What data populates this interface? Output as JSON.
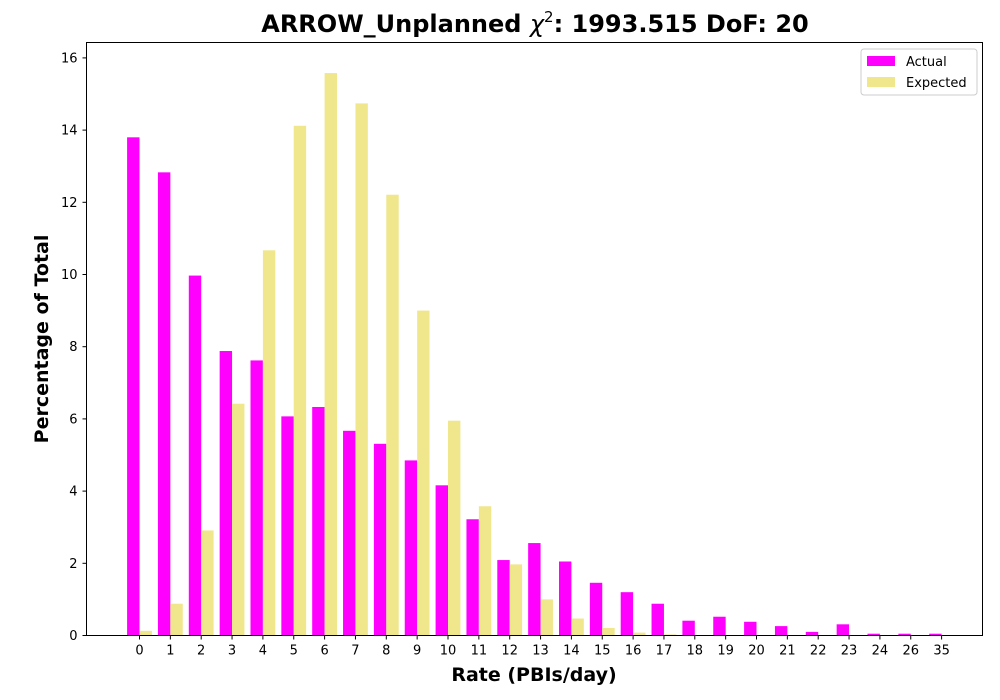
{
  "chart_data": {
    "type": "bar",
    "title_prefix": "ARROW_Unplanned ",
    "title_symbol": "χ",
    "title_superscript": "2",
    "title_suffix": ": 1993.515 DoF: 20",
    "xlabel": "Rate (PBIs/day)",
    "ylabel": "Percentage of Total",
    "ylim": [
      0,
      16.4
    ],
    "yticks": [
      0,
      2,
      4,
      6,
      8,
      10,
      12,
      14,
      16
    ],
    "grid": false,
    "legend_position": "top-right",
    "categories": [
      "0",
      "1",
      "2",
      "3",
      "4",
      "5",
      "6",
      "7",
      "8",
      "9",
      "10",
      "11",
      "12",
      "13",
      "14",
      "15",
      "16",
      "17",
      "18",
      "19",
      "20",
      "21",
      "22",
      "23",
      "24",
      "26",
      "35"
    ],
    "series": [
      {
        "name": "Actual",
        "color": "#ff00ff",
        "values": [
          13.8,
          12.83,
          9.97,
          7.88,
          7.62,
          6.07,
          6.33,
          5.67,
          5.31,
          4.85,
          4.16,
          3.22,
          2.09,
          2.56,
          2.05,
          1.46,
          1.2,
          0.88,
          0.41,
          0.52,
          0.38,
          0.26,
          0.1,
          0.31,
          0.05,
          0.05,
          0.05
        ]
      },
      {
        "name": "Expected",
        "color": "#f0e68c",
        "values": [
          0.13,
          0.88,
          2.91,
          6.42,
          10.67,
          14.12,
          15.58,
          14.74,
          12.21,
          9.0,
          5.95,
          3.58,
          1.97,
          1.0,
          0.47,
          0.21,
          0.08,
          0.03,
          0.01,
          0.0,
          0.0,
          0.0,
          0.0,
          0.0,
          0.0,
          0.0,
          0.0
        ]
      }
    ]
  }
}
